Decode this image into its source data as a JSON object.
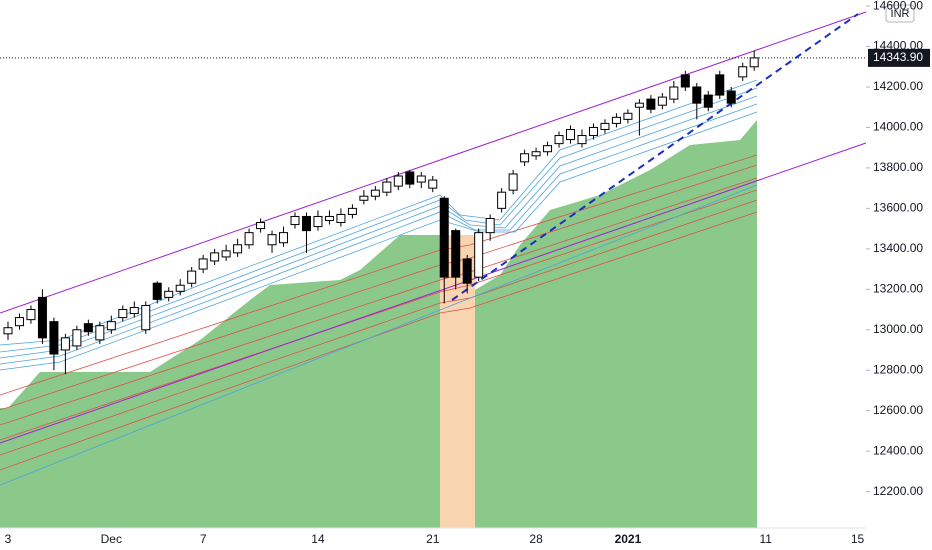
{
  "chart_data": {
    "type": "candlestick",
    "currency": "INR",
    "categories": [
      "3",
      null,
      null,
      null,
      null,
      null,
      null,
      null,
      null,
      "Dec",
      null,
      null,
      null,
      null,
      null,
      null,
      null,
      "7",
      null,
      null,
      null,
      null,
      null,
      null,
      null,
      null,
      null,
      "14",
      null,
      null,
      null,
      null,
      null,
      null,
      null,
      null,
      null,
      "21",
      null,
      null,
      null,
      null,
      null,
      null,
      null,
      null,
      "28",
      null,
      null,
      null,
      null,
      null,
      null,
      null,
      "2021",
      null,
      null,
      null,
      null,
      null,
      null,
      null,
      null,
      null,
      null,
      null,
      "11",
      null,
      null,
      null,
      null,
      null,
      null,
      null,
      "15"
    ],
    "open": [
      12980,
      13020,
      13050,
      13160,
      13040,
      12900,
      12920,
      13030,
      12950,
      13000,
      13060,
      13080,
      13000,
      13230,
      13160,
      13190,
      13230,
      13300,
      13340,
      13360,
      13380,
      13420,
      13500,
      13420,
      13430,
      13520,
      13560,
      13510,
      13540,
      13530,
      13570,
      13640,
      13660,
      13680,
      13710,
      13780,
      13730,
      13700,
      13650,
      13490,
      13350,
      13260,
      13480,
      13600,
      13690,
      13830,
      13860,
      13880,
      13920,
      13940,
      13920,
      13960,
      13990,
      14020,
      14040,
      14100,
      14140,
      14110,
      14140,
      14260,
      14200,
      14160,
      14260,
      14180,
      14250,
      14300,
      null,
      null,
      null,
      null,
      null,
      null,
      null,
      null,
      null
    ],
    "high": [
      13040,
      13080,
      13120,
      13200,
      13060,
      12980,
      13020,
      13050,
      13040,
      13070,
      13120,
      13140,
      13140,
      13240,
      13210,
      13250,
      13310,
      13370,
      13400,
      13420,
      13450,
      13500,
      13550,
      13490,
      13510,
      13580,
      13580,
      13590,
      13590,
      13600,
      13620,
      13690,
      13710,
      13750,
      13780,
      13790,
      13780,
      13760,
      13660,
      13500,
      13370,
      13500,
      13570,
      13700,
      13790,
      13890,
      13900,
      13930,
      13980,
      14010,
      13990,
      14020,
      14040,
      14070,
      14090,
      14140,
      14160,
      14170,
      14230,
      14280,
      14220,
      14180,
      14280,
      14200,
      14320,
      14380,
      null,
      null,
      null,
      null,
      null,
      null,
      null,
      null,
      null
    ],
    "low": [
      12950,
      13000,
      13030,
      12930,
      12800,
      12780,
      12900,
      12970,
      12930,
      12980,
      13040,
      13060,
      12980,
      13130,
      13140,
      13170,
      13210,
      13280,
      13320,
      13340,
      13360,
      13400,
      13480,
      13380,
      13410,
      13500,
      13380,
      13490,
      13520,
      13510,
      13550,
      13620,
      13640,
      13660,
      13690,
      13700,
      13700,
      13680,
      13130,
      13200,
      13180,
      13240,
      13440,
      13580,
      13670,
      13810,
      13840,
      13860,
      13900,
      13920,
      13900,
      13940,
      13970,
      14000,
      14020,
      13960,
      14070,
      14090,
      14120,
      14180,
      14040,
      14080,
      14140,
      14100,
      14230,
      14280,
      null,
      null,
      null,
      null,
      null,
      null,
      null,
      null,
      null
    ],
    "close": [
      13010,
      13060,
      13100,
      12960,
      12880,
      12960,
      13000,
      12990,
      13020,
      13040,
      13100,
      13110,
      13120,
      13150,
      13190,
      13220,
      13290,
      13350,
      13380,
      13390,
      13420,
      13480,
      13530,
      13470,
      13480,
      13560,
      13490,
      13560,
      13560,
      13570,
      13600,
      13660,
      13690,
      13730,
      13760,
      13720,
      13760,
      13740,
      13260,
      13260,
      13230,
      13480,
      13550,
      13680,
      13770,
      13870,
      13880,
      13910,
      13960,
      13990,
      13960,
      14000,
      14020,
      14050,
      14070,
      14120,
      14090,
      14150,
      14200,
      14200,
      14120,
      14100,
      14160,
      14120,
      14300,
      14343.9,
      null,
      null,
      null,
      null,
      null,
      null,
      null,
      null,
      null
    ],
    "last_price": {
      "value": 14343.9,
      "label": "14343.90"
    },
    "ylim": [
      12020,
      14630
    ],
    "yticks": [
      {
        "value": 12200,
        "label": "12200.00"
      },
      {
        "value": 12400,
        "label": "12400.00"
      },
      {
        "value": 12600,
        "label": "12600.00"
      },
      {
        "value": 12800,
        "label": "12800.00"
      },
      {
        "value": 13000,
        "label": "13000.00"
      },
      {
        "value": 13200,
        "label": "13200.00"
      },
      {
        "value": 13400,
        "label": "13400.00"
      },
      {
        "value": 13600,
        "label": "13600.00"
      },
      {
        "value": 13800,
        "label": "13800.00"
      },
      {
        "value": 14000,
        "label": "14000.00"
      },
      {
        "value": 14200,
        "label": "14200.00"
      },
      {
        "value": 14400,
        "label": "14400.00"
      },
      {
        "value": 14600,
        "label": "14600.00"
      }
    ]
  }
}
